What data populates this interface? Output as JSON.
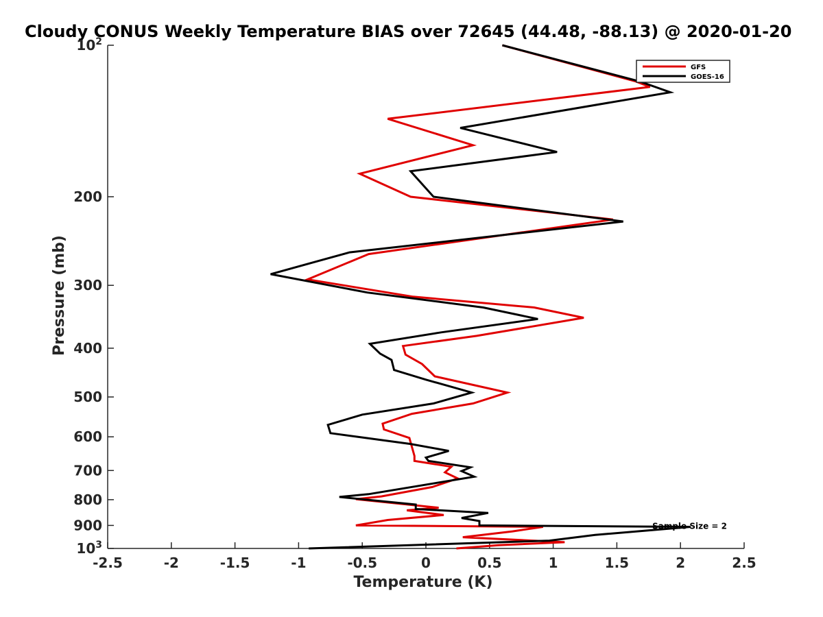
{
  "chart_data": {
    "type": "line",
    "title": "Cloudy CONUS Weekly Temperature BIAS over 72645 (44.48, -88.13) @ 2020-01-20",
    "xlabel": "Temperature (K)",
    "ylabel": "Pressure (mb)",
    "xlim": [
      -2.5,
      2.5
    ],
    "ylim": [
      100,
      1000
    ],
    "y_scale": "log",
    "y_reversed": true,
    "x_ticks": [
      -2.5,
      -2,
      -1.5,
      -1,
      -0.5,
      0,
      0.5,
      1,
      1.5,
      2,
      2.5
    ],
    "x_tick_labels": [
      "-2.5",
      "-2",
      "-1.5",
      "-1",
      "-0.5",
      "0",
      "0.5",
      "1",
      "1.5",
      "2",
      "2.5"
    ],
    "y_ticks": [
      100,
      200,
      300,
      400,
      500,
      600,
      700,
      800,
      900,
      1000
    ],
    "y_tick_labels": [
      {
        "base": "10",
        "sup": "2"
      },
      {
        "base": "200"
      },
      {
        "base": "300"
      },
      {
        "base": "400"
      },
      {
        "base": "500"
      },
      {
        "base": "600"
      },
      {
        "base": "700"
      },
      {
        "base": "800"
      },
      {
        "base": "900"
      },
      {
        "base": "10",
        "sup": "3"
      }
    ],
    "legend": {
      "position": "top-right"
    },
    "grid": false,
    "annotation": "Sample Size = 2",
    "series": [
      {
        "name": "GFS",
        "color": "#e00000",
        "points": [
          [
            0.6,
            100
          ],
          [
            1.65,
            118
          ],
          [
            1.76,
            121
          ],
          [
            -0.3,
            140
          ],
          [
            0.37,
            158
          ],
          [
            -0.52,
            180
          ],
          [
            -0.12,
            200
          ],
          [
            1.47,
            222
          ],
          [
            -0.45,
            260
          ],
          [
            -0.93,
            292
          ],
          [
            -0.1,
            316
          ],
          [
            0.85,
            332
          ],
          [
            1.24,
            348
          ],
          [
            0.4,
            378
          ],
          [
            -0.18,
            396
          ],
          [
            -0.16,
            412
          ],
          [
            -0.03,
            430
          ],
          [
            0.07,
            455
          ],
          [
            0.64,
            490
          ],
          [
            0.37,
            515
          ],
          [
            -0.11,
            540
          ],
          [
            -0.34,
            565
          ],
          [
            -0.33,
            580
          ],
          [
            -0.13,
            603
          ],
          [
            -0.09,
            655
          ],
          [
            -0.09,
            670
          ],
          [
            0.2,
            688
          ],
          [
            0.15,
            706
          ],
          [
            0.25,
            726
          ],
          [
            0.05,
            755
          ],
          [
            -0.35,
            788
          ],
          [
            -0.55,
            798
          ],
          [
            0.1,
            830
          ],
          [
            -0.15,
            840
          ],
          [
            0.14,
            858
          ],
          [
            -0.3,
            878
          ],
          [
            -0.55,
            900
          ],
          [
            0.92,
            906
          ],
          [
            0.68,
            925
          ],
          [
            0.29,
            950
          ],
          [
            1.09,
            972
          ],
          [
            0.57,
            985
          ],
          [
            0.24,
            1000
          ]
        ]
      },
      {
        "name": "GOES-16",
        "color": "#000000",
        "points": [
          [
            0.6,
            100
          ],
          [
            1.68,
            118
          ],
          [
            1.92,
            124
          ],
          [
            0.27,
            146
          ],
          [
            1.03,
            163
          ],
          [
            -0.12,
            178
          ],
          [
            0.06,
            200
          ],
          [
            1.55,
            224
          ],
          [
            -0.6,
            258
          ],
          [
            -1.22,
            285
          ],
          [
            -0.46,
            310
          ],
          [
            0.45,
            332
          ],
          [
            0.88,
            350
          ],
          [
            0.12,
            372
          ],
          [
            -0.44,
            392
          ],
          [
            -0.36,
            410
          ],
          [
            -0.27,
            422
          ],
          [
            -0.25,
            442
          ],
          [
            0.0,
            462
          ],
          [
            0.36,
            490
          ],
          [
            0.06,
            515
          ],
          [
            -0.5,
            542
          ],
          [
            -0.77,
            568
          ],
          [
            -0.75,
            590
          ],
          [
            -0.12,
            620
          ],
          [
            0.18,
            640
          ],
          [
            0.0,
            660
          ],
          [
            0.02,
            670
          ],
          [
            0.35,
            690
          ],
          [
            0.28,
            702
          ],
          [
            0.38,
            720
          ],
          [
            -0.45,
            780
          ],
          [
            -0.68,
            790
          ],
          [
            -0.08,
            818
          ],
          [
            -0.08,
            835
          ],
          [
            0.49,
            850
          ],
          [
            0.28,
            870
          ],
          [
            0.42,
            882
          ],
          [
            0.42,
            900
          ],
          [
            2.08,
            906
          ],
          [
            1.33,
            940
          ],
          [
            0.97,
            965
          ],
          [
            -0.92,
            1000
          ]
        ]
      }
    ]
  }
}
